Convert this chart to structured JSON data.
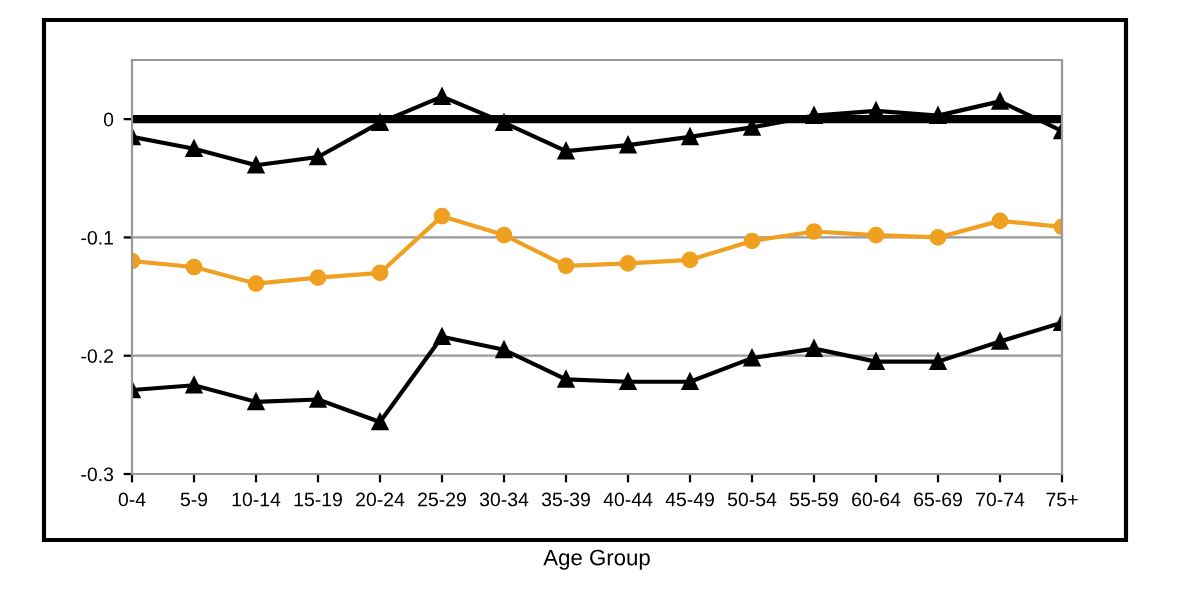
{
  "chart_data": {
    "type": "line",
    "xlabel": "Age Group",
    "categories": [
      "0-4",
      "5-9",
      "10-14",
      "15-19",
      "20-24",
      "25-29",
      "30-34",
      "35-39",
      "40-44",
      "45-49",
      "50-54",
      "55-59",
      "60-64",
      "65-69",
      "70-74",
      "75+"
    ],
    "series": [
      {
        "color": "#000000",
        "marker": "triangle",
        "values": [
          -0.015,
          -0.025,
          -0.039,
          -0.032,
          -0.003,
          0.019,
          -0.003,
          -0.027,
          -0.022,
          -0.015,
          -0.007,
          0.003,
          0.007,
          0.003,
          0.015,
          -0.01
        ]
      },
      {
        "color": "#f0a020",
        "marker": "circle",
        "values": [
          -0.12,
          -0.125,
          -0.139,
          -0.134,
          -0.13,
          -0.082,
          -0.098,
          -0.124,
          -0.122,
          -0.119,
          -0.103,
          -0.095,
          -0.098,
          -0.1,
          -0.086,
          -0.091
        ]
      },
      {
        "color": "#000000",
        "marker": "triangle",
        "values": [
          -0.229,
          -0.225,
          -0.239,
          -0.237,
          -0.256,
          -0.184,
          -0.195,
          -0.22,
          -0.222,
          -0.222,
          -0.202,
          -0.194,
          -0.205,
          -0.205,
          -0.188,
          -0.172
        ]
      }
    ],
    "ylim": [
      -0.3,
      0.05
    ],
    "yticks": [
      {
        "value": -0.3,
        "label": "-0.3"
      },
      {
        "value": -0.2,
        "label": "-0.2"
      },
      {
        "value": -0.1,
        "label": "-0.1"
      },
      0
    ],
    "grid": "y",
    "ref_lines": [
      {
        "axis": "y",
        "value": 0,
        "color": "#000000"
      }
    ],
    "legend": false
  }
}
